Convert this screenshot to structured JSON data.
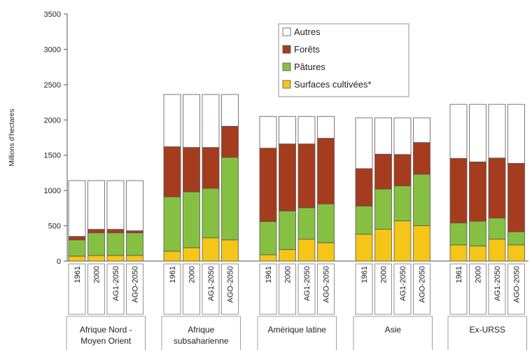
{
  "chart_data": {
    "type": "bar",
    "stacked": true,
    "ylabel": "Millions d'hectares",
    "ylim": [
      0,
      3500
    ],
    "yticks": [
      0,
      500,
      1000,
      1500,
      2000,
      2500,
      3000,
      3500
    ],
    "grid": false,
    "legend_position": "top-center",
    "bar_labels": [
      "1961",
      "2000",
      "AG1-2050",
      "AGO-2050"
    ],
    "groups": [
      {
        "name": "Afrique Nord - Moyen Orient",
        "label_lines": [
          "Afrique Nord -",
          "Moyen Orient"
        ]
      },
      {
        "name": "Afrique subsaharienne",
        "label_lines": [
          "Afrique",
          "subsaharienne"
        ]
      },
      {
        "name": "Amérique latine",
        "label_lines": [
          "Amérique latine"
        ]
      },
      {
        "name": "Asie",
        "label_lines": [
          "Asie"
        ]
      },
      {
        "name": "Ex-URSS",
        "label_lines": [
          "Ex-URSS"
        ]
      }
    ],
    "series": [
      {
        "name": "Surfaces cultivées*",
        "color": "#f5c518",
        "values": [
          [
            70,
            80,
            80,
            80
          ],
          [
            140,
            190,
            330,
            300
          ],
          [
            90,
            165,
            310,
            260
          ],
          [
            380,
            450,
            570,
            500
          ],
          [
            230,
            215,
            310,
            230
          ]
        ]
      },
      {
        "name": "Pâtures",
        "color": "#86c043",
        "values": [
          [
            230,
            320,
            320,
            320
          ],
          [
            770,
            790,
            700,
            1170
          ],
          [
            470,
            545,
            445,
            550
          ],
          [
            400,
            570,
            495,
            730
          ],
          [
            310,
            350,
            300,
            185
          ]
        ]
      },
      {
        "name": "Forêts",
        "color": "#a63c1e",
        "values": [
          [
            50,
            50,
            50,
            30
          ],
          [
            710,
            630,
            580,
            440
          ],
          [
            1040,
            950,
            905,
            930
          ],
          [
            530,
            495,
            445,
            450
          ],
          [
            915,
            840,
            850,
            970
          ]
        ]
      },
      {
        "name": "Autres",
        "color": "#ffffff",
        "values": [
          [
            790,
            690,
            690,
            710
          ],
          [
            740,
            750,
            750,
            450
          ],
          [
            450,
            390,
            390,
            310
          ],
          [
            720,
            515,
            520,
            350
          ],
          [
            765,
            815,
            760,
            835
          ]
        ]
      }
    ],
    "legend_order": [
      "Autres",
      "Forêts",
      "Pâtures",
      "Surfaces cultivées*"
    ]
  }
}
